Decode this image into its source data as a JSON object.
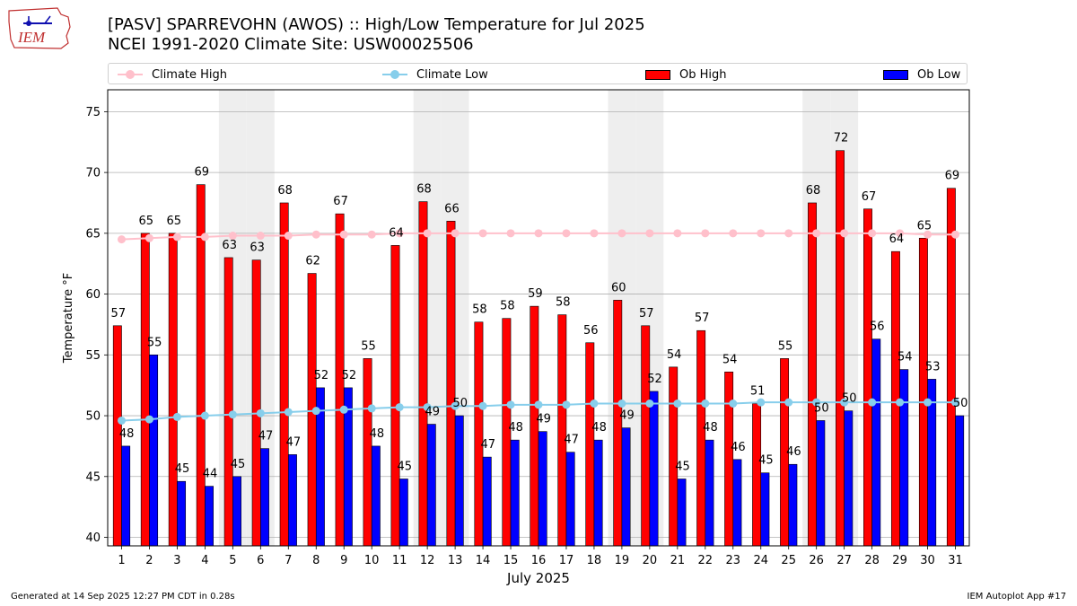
{
  "header": {
    "logo_text": "IEM",
    "title_line1": "[PASV] SPARREVOHN (AWOS) :: High/Low Temperature for Jul 2025",
    "title_line2": "NCEI 1991-2020 Climate Site: USW00025506"
  },
  "footer": {
    "generated": "Generated at 14 Sep 2025 12:27 PM CDT in 0.28s",
    "app": "IEM Autoplot App #17"
  },
  "colors": {
    "climate_high": "#ffc0cb",
    "climate_low": "#87ceeb",
    "ob_high": "#ff0000",
    "ob_low": "#0000ff",
    "weekend_shade": "#eeeeee",
    "grid": "#b0b0b0"
  },
  "chart_data": {
    "type": "bar",
    "title": "[PASV] SPARREVOHN (AWOS) :: High/Low Temperature for Jul 2025",
    "subtitle": "NCEI 1991-2020 Climate Site: USW00025506",
    "xlabel": "July 2025",
    "ylabel": "Temperature °F",
    "ylim": [
      39.3,
      76.8
    ],
    "yticks": [
      40,
      45,
      50,
      55,
      60,
      65,
      70,
      75
    ],
    "grid": true,
    "legend_position": "top",
    "categories": [
      "1",
      "2",
      "3",
      "4",
      "5",
      "6",
      "7",
      "8",
      "9",
      "10",
      "11",
      "12",
      "13",
      "14",
      "15",
      "16",
      "17",
      "18",
      "19",
      "20",
      "21",
      "22",
      "23",
      "24",
      "25",
      "26",
      "27",
      "28",
      "29",
      "30",
      "31"
    ],
    "shaded_categories": [
      "5",
      "6",
      "12",
      "13",
      "19",
      "20",
      "26",
      "27"
    ],
    "series": [
      {
        "name": "Ob High",
        "kind": "bar",
        "color": "#ff0000",
        "values": [
          57.4,
          65,
          65,
          69,
          63,
          62.8,
          67.5,
          61.7,
          66.6,
          54.7,
          64,
          67.6,
          66,
          57.7,
          58,
          59,
          58.3,
          56,
          59.5,
          57.4,
          54,
          57,
          53.6,
          51,
          54.7,
          67.5,
          71.8,
          67,
          63.5,
          64.6,
          68.7
        ],
        "labels": [
          "57",
          "65",
          "65",
          "69",
          "63",
          "63",
          "68",
          "62",
          "67",
          "55",
          "64",
          "68",
          "66",
          "58",
          "58",
          "59",
          "58",
          "56",
          "60",
          "57",
          "54",
          "57",
          "54",
          "51",
          "55",
          "68",
          "72",
          "67",
          "64",
          "65",
          "69"
        ]
      },
      {
        "name": "Ob Low",
        "kind": "bar",
        "color": "#0000ff",
        "values": [
          47.5,
          55,
          44.6,
          44.2,
          45,
          47.3,
          46.8,
          52.3,
          52.3,
          47.5,
          44.8,
          49.3,
          50,
          46.6,
          48,
          48.7,
          47,
          48,
          49,
          52,
          44.8,
          48,
          46.4,
          45.3,
          46,
          49.6,
          50.4,
          56.3,
          53.8,
          53,
          50
        ],
        "labels": [
          "48",
          "55",
          "45",
          "44",
          "45",
          "47",
          "47",
          "52",
          "52",
          "48",
          "45",
          "49",
          "50",
          "47",
          "48",
          "49",
          "47",
          "48",
          "49",
          "52",
          "45",
          "48",
          "46",
          "45",
          "46",
          "50",
          "50",
          "56",
          "54",
          "53",
          "50"
        ]
      },
      {
        "name": "Climate High",
        "kind": "line",
        "color": "#ffc0cb",
        "values": [
          64.5,
          64.6,
          64.7,
          64.7,
          64.8,
          64.8,
          64.8,
          64.9,
          64.9,
          64.9,
          65,
          65,
          65,
          65,
          65,
          65,
          65,
          65,
          65,
          65,
          65,
          65,
          65,
          65,
          65,
          65,
          65,
          65,
          65,
          64.9,
          64.9
        ]
      },
      {
        "name": "Climate Low",
        "kind": "line",
        "color": "#87ceeb",
        "values": [
          49.6,
          49.7,
          49.9,
          50,
          50.1,
          50.2,
          50.3,
          50.4,
          50.5,
          50.6,
          50.7,
          50.7,
          50.8,
          50.8,
          50.9,
          50.9,
          50.9,
          51,
          51,
          51,
          51,
          51,
          51,
          51.1,
          51.1,
          51.1,
          51.1,
          51.1,
          51.1,
          51.1,
          51.1
        ]
      }
    ]
  }
}
